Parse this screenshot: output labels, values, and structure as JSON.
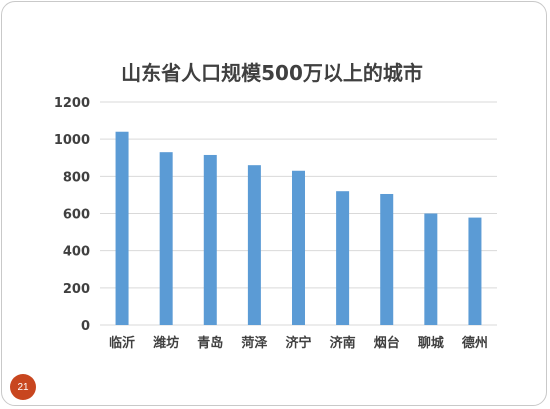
{
  "slide": {
    "page_number": "21"
  },
  "colors": {
    "bar": "#5b9bd5",
    "grid": "#d9d9d9",
    "text": "#404040",
    "badge": "#c8461f"
  },
  "chart_data": {
    "type": "bar",
    "title": "山东省人口规模500万以上的城市",
    "xlabel": "",
    "ylabel": "",
    "categories": [
      "临沂",
      "潍坊",
      "青岛",
      "菏泽",
      "济宁",
      "济南",
      "烟台",
      "聊城",
      "德州"
    ],
    "values": [
      1040,
      930,
      915,
      860,
      830,
      720,
      705,
      600,
      578
    ],
    "ylim": [
      0,
      1200
    ],
    "yticks": [
      0,
      200,
      400,
      600,
      800,
      1000,
      1200
    ],
    "grid": true,
    "legend": "none"
  }
}
